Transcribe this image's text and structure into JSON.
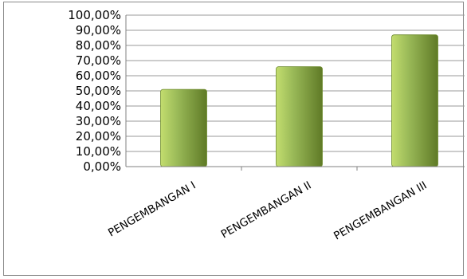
{
  "chart_data": {
    "type": "bar",
    "categories": [
      "PENGEMBANGAN I",
      "PENGEMBANGAN II",
      "PENGEMBANGAN III"
    ],
    "values": [
      51,
      66,
      87
    ],
    "ylim": [
      0,
      100
    ],
    "ytick_step": 10,
    "ytick_labels": [
      "0,00%",
      "10,00%",
      "20,00%",
      "30,00%",
      "40,00%",
      "50,00%",
      "60,00%",
      "70,00%",
      "80,00%",
      "90,00%",
      "100,00%"
    ],
    "title": "",
    "xlabel": "",
    "ylabel": "",
    "grid": true,
    "legend": "none",
    "colors": {
      "bar_light": "#c3dd6e",
      "bar_mid": "#9bbb59",
      "bar_dark": "#5f7a26",
      "grid": "#9a9a9a",
      "axis": "#808080"
    }
  }
}
